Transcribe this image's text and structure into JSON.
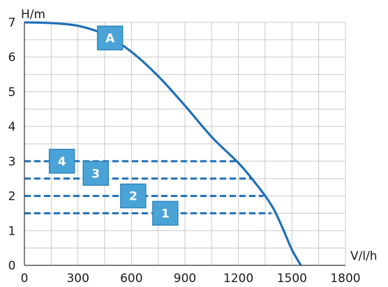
{
  "chart_data": {
    "type": "line",
    "ylabel": "H/m",
    "xlabel": "V/l/h",
    "xlim": [
      0,
      1800
    ],
    "ylim": [
      0,
      7
    ],
    "x_ticks": [
      "0",
      "300",
      "600",
      "900",
      "1200",
      "1500",
      "1800"
    ],
    "y_ticks": [
      "0",
      "1",
      "2",
      "3",
      "4",
      "5",
      "6",
      "7"
    ],
    "grid": true,
    "curve": {
      "label": "A",
      "label_at": [
        480,
        6.55
      ],
      "points": [
        [
          0,
          7.0
        ],
        [
          150,
          6.98
        ],
        [
          300,
          6.9
        ],
        [
          450,
          6.65
        ],
        [
          600,
          6.15
        ],
        [
          750,
          5.45
        ],
        [
          900,
          4.6
        ],
        [
          1050,
          3.7
        ],
        [
          1200,
          2.95
        ],
        [
          1275,
          2.5
        ],
        [
          1350,
          2.0
        ],
        [
          1400,
          1.6
        ],
        [
          1450,
          1.05
        ],
        [
          1500,
          0.45
        ],
        [
          1550,
          0.0
        ]
      ]
    },
    "operating_points": [
      {
        "label": "4",
        "h": 3.0,
        "v": 1205,
        "label_at": [
          210,
          3.0
        ]
      },
      {
        "label": "3",
        "h": 2.5,
        "v": 1280,
        "label_at": [
          400,
          2.65
        ]
      },
      {
        "label": "2",
        "h": 2.0,
        "v": 1340,
        "label_at": [
          610,
          2.0
        ]
      },
      {
        "label": "1",
        "h": 1.5,
        "v": 1385,
        "label_at": [
          790,
          1.5
        ]
      }
    ],
    "colors": {
      "curve": "#1f6fb5",
      "dashed": "#1f6fb5",
      "badge_fill": "#4aa3d6",
      "badge_border": "#2f86bd",
      "grid": "#c8c8c8",
      "axis": "#333333"
    }
  }
}
